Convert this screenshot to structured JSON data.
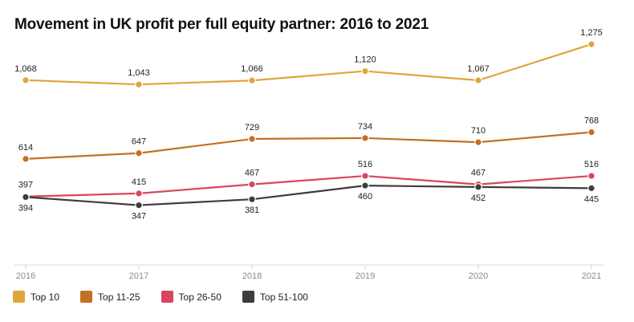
{
  "title": "Movement in UK profit per full equity partner: 2016 to 2021",
  "chart_data": {
    "type": "line",
    "title": "Movement in UK profit per full equity partner: 2016 to 2021",
    "xlabel": "",
    "ylabel": "",
    "categories": [
      "2016",
      "2017",
      "2018",
      "2019",
      "2020",
      "2021"
    ],
    "series": [
      {
        "name": "Top 10",
        "color": "#e0a53a",
        "values": [
          1068,
          1043,
          1066,
          1120,
          1067,
          1275
        ],
        "labels": [
          "1,068",
          "1,043",
          "1,066",
          "1,120",
          "1,067",
          "1,275"
        ]
      },
      {
        "name": "Top 11-25",
        "color": "#c46f22",
        "values": [
          614,
          647,
          729,
          734,
          710,
          768
        ],
        "labels": [
          "614",
          "647",
          "729",
          "734",
          "710",
          "768"
        ]
      },
      {
        "name": "Top 26-50",
        "color": "#d9455f",
        "values": [
          397,
          415,
          467,
          516,
          467,
          516
        ],
        "labels": [
          "397",
          "415",
          "467",
          "516",
          "467",
          "516"
        ]
      },
      {
        "name": "Top 51-100",
        "color": "#3d3d3d",
        "values": [
          394,
          347,
          381,
          460,
          452,
          445
        ],
        "labels": [
          "394",
          "347",
          "381",
          "460",
          "452",
          "445"
        ]
      }
    ],
    "grid": false,
    "legend_position": "bottom-left"
  }
}
